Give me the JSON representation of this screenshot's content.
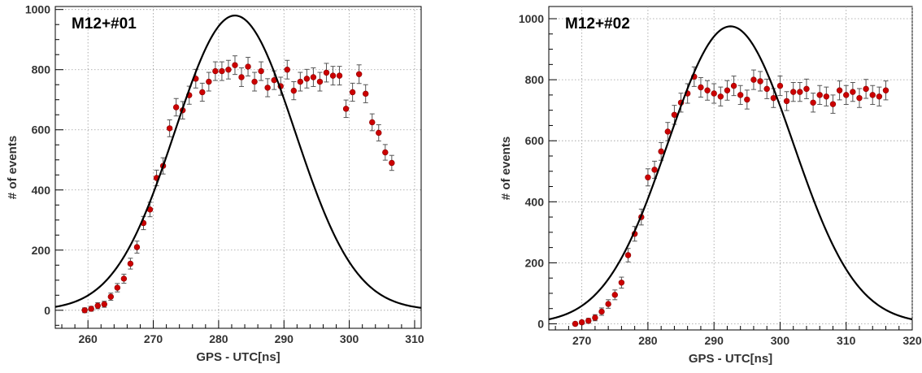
{
  "chart_data": [
    {
      "type": "scatter",
      "title": "M12+#01",
      "xlabel": "GPS - UTC[ns]",
      "ylabel": "# of events",
      "xlim": [
        255,
        311
      ],
      "ylim": [
        -60,
        1010
      ],
      "xticks": [
        260,
        270,
        280,
        290,
        300,
        310
      ],
      "yticks": [
        0,
        200,
        400,
        600,
        800,
        1000
      ],
      "grid": true,
      "series": [
        {
          "kind": "points_with_errors",
          "color": "#cc0000",
          "x": [
            259.5,
            260.5,
            261.5,
            262.5,
            263.5,
            264.5,
            265.5,
            266.5,
            267.5,
            268.5,
            269.5,
            270.5,
            271.5,
            272.5,
            273.5,
            274.5,
            275.5,
            276.5,
            277.5,
            278.5,
            279.5,
            280.5,
            281.5,
            282.5,
            283.5,
            284.5,
            285.5,
            286.5,
            287.5,
            288.5,
            289.5,
            290.5,
            291.5,
            292.5,
            293.5,
            294.5,
            295.5,
            296.5,
            297.5,
            298.5,
            299.5,
            300.5,
            301.5,
            302.5,
            303.5,
            304.5,
            305.5,
            306.5
          ],
          "y": [
            0,
            5,
            15,
            20,
            45,
            75,
            105,
            155,
            210,
            290,
            335,
            440,
            480,
            605,
            675,
            665,
            715,
            770,
            725,
            760,
            795,
            795,
            800,
            815,
            775,
            810,
            760,
            795,
            740,
            765,
            745,
            800,
            730,
            760,
            770,
            775,
            760,
            790,
            780,
            780,
            670,
            725,
            785,
            720,
            625,
            590,
            525,
            490
          ],
          "err": [
            8,
            8,
            10,
            10,
            12,
            14,
            15,
            18,
            20,
            22,
            24,
            26,
            27,
            28,
            29,
            29,
            30,
            31,
            30,
            31,
            31,
            31,
            31,
            31,
            31,
            31,
            31,
            31,
            30,
            31,
            30,
            31,
            30,
            31,
            31,
            31,
            31,
            31,
            31,
            31,
            29,
            30,
            31,
            30,
            28,
            27,
            26,
            25
          ]
        },
        {
          "kind": "curve",
          "color": "#000000",
          "model": "gaussian",
          "amplitude": 980,
          "mean": 282.5,
          "sigma": 9.2
        }
      ]
    },
    {
      "type": "scatter",
      "title": "M12+#02",
      "xlabel": "GPS - UTC[ns]",
      "ylabel": "# of events",
      "xlim": [
        265,
        320
      ],
      "ylim": [
        -20,
        1040
      ],
      "xticks": [
        270,
        280,
        290,
        300,
        310,
        320
      ],
      "yticks": [
        0,
        200,
        400,
        600,
        800,
        1000
      ],
      "grid": true,
      "series": [
        {
          "kind": "points_with_errors",
          "color": "#cc0000",
          "x": [
            269,
            270,
            271,
            272,
            273,
            274,
            275,
            276,
            277,
            278,
            279,
            280,
            281,
            282,
            283,
            284,
            285,
            286,
            287,
            288,
            289,
            290,
            291,
            292,
            293,
            294,
            295,
            296,
            297,
            298,
            299,
            300,
            301,
            302,
            303,
            304,
            305,
            306,
            307,
            308,
            309,
            310,
            311,
            312,
            313,
            314,
            315,
            316
          ],
          "y": [
            0,
            5,
            10,
            20,
            40,
            65,
            95,
            135,
            225,
            295,
            350,
            480,
            505,
            565,
            630,
            685,
            725,
            755,
            810,
            775,
            765,
            755,
            745,
            765,
            780,
            750,
            735,
            800,
            795,
            770,
            740,
            780,
            730,
            760,
            760,
            770,
            725,
            750,
            745,
            720,
            765,
            750,
            760,
            740,
            770,
            750,
            745,
            765
          ],
          "err": [
            6,
            6,
            8,
            10,
            12,
            14,
            16,
            18,
            22,
            24,
            26,
            28,
            28,
            29,
            30,
            31,
            31,
            32,
            32,
            32,
            32,
            32,
            31,
            32,
            32,
            31,
            31,
            32,
            32,
            32,
            31,
            32,
            31,
            31,
            31,
            32,
            31,
            31,
            31,
            30,
            31,
            31,
            31,
            31,
            31,
            31,
            31,
            31
          ]
        },
        {
          "kind": "curve",
          "color": "#000000",
          "model": "gaussian",
          "amplitude": 975,
          "mean": 292.5,
          "sigma": 9.5
        }
      ]
    }
  ]
}
